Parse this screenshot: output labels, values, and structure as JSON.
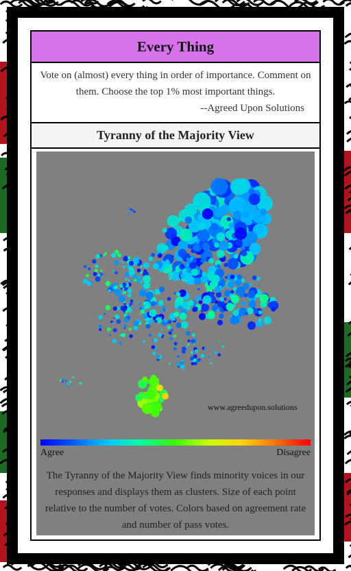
{
  "header": {
    "title": "Every Thing"
  },
  "intro": {
    "text": "Vote on (almost) every thing in order of importance. Comment on them. Choose the top 1% most important things.",
    "author": "--Agreed Upon Solutions"
  },
  "section": {
    "title": "Tyranny of the Majority View"
  },
  "viz": {
    "credit": "www.agreedupon.solutions",
    "scale_left_label": "Agree",
    "scale_right_label": "Disagree",
    "description": "The Tyranny of the Majority View finds minority voices in our responses and displays them as clusters. Size of each point relative to the number of votes. Colors based on agreement rate and number of pass votes."
  },
  "colors": {
    "title_bar": "#d872ea",
    "plot_background": "#808080",
    "border_pattern": [
      "#000000",
      "#b3141b",
      "#1d6b22",
      "#ffffff"
    ]
  }
}
